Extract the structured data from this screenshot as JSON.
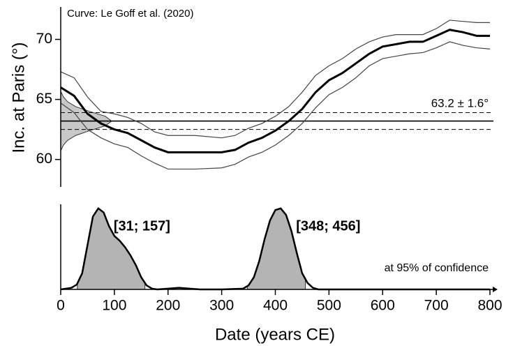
{
  "chart_data": [
    {
      "type": "line",
      "annotation": "Curve: Le Goff et al. (2020)",
      "ylabel": "Inc. at Paris (°)",
      "x": [
        0,
        25,
        50,
        75,
        100,
        125,
        150,
        175,
        200,
        250,
        300,
        325,
        350,
        375,
        400,
        425,
        450,
        475,
        500,
        525,
        550,
        575,
        600,
        625,
        650,
        675,
        700,
        725,
        750,
        775,
        800
      ],
      "series": [
        {
          "color": "#000000",
          "values": [
            66.0,
            65.3,
            63.8,
            63.0,
            62.5,
            62.2,
            61.6,
            61.0,
            60.6,
            60.6,
            60.6,
            60.8,
            61.4,
            61.8,
            62.4,
            63.2,
            64.2,
            65.6,
            66.6,
            67.2,
            68.0,
            68.8,
            69.4,
            69.6,
            69.8,
            69.8,
            70.3,
            70.8,
            70.6,
            70.3,
            70.3
          ]
        },
        {
          "color": "#444444",
          "values": [
            67.3,
            66.8,
            65.2,
            64.0,
            63.8,
            63.5,
            63.0,
            62.3,
            62.0,
            62.0,
            61.8,
            62.0,
            62.6,
            63.0,
            63.6,
            64.4,
            65.6,
            67.0,
            67.8,
            68.4,
            69.2,
            69.8,
            70.2,
            70.4,
            70.4,
            70.4,
            70.9,
            71.6,
            71.5,
            71.4,
            71.4
          ]
        },
        {
          "color": "#444444",
          "values": [
            64.7,
            63.9,
            62.5,
            61.8,
            61.3,
            61.0,
            60.3,
            59.7,
            59.2,
            59.2,
            59.3,
            59.6,
            60.2,
            60.6,
            61.2,
            62.0,
            63.0,
            64.3,
            65.4,
            66.0,
            66.8,
            67.8,
            68.4,
            68.6,
            68.8,
            68.9,
            69.3,
            69.8,
            69.5,
            69.3,
            69.2
          ]
        }
      ],
      "reference": {
        "label": "63.2 ± 1.6°",
        "value": 63.2,
        "lower": 62.5,
        "upper": 63.9
      },
      "density": {
        "color": "#c8c8c8",
        "y": [
          60.8,
          61.2,
          61.6,
          62.0,
          62.4,
          62.8,
          63.2,
          63.6,
          64.0,
          64.4,
          64.8,
          65.2,
          65.6
        ],
        "values": [
          1,
          5,
          13,
          28,
          54,
          83,
          95,
          83,
          54,
          28,
          13,
          5,
          1
        ]
      },
      "xlim": [
        0,
        800
      ],
      "ylim": [
        57.6,
        72.7
      ],
      "yticks": [
        60,
        65,
        70
      ]
    },
    {
      "type": "area",
      "color": "#b4b4b4",
      "xlabel": "Date (years CE)",
      "annotation": "at 95% of confidence",
      "x": [
        0,
        20,
        30,
        40,
        50,
        60,
        70,
        80,
        90,
        100,
        110,
        120,
        130,
        140,
        150,
        160,
        170,
        180,
        200,
        220,
        240,
        260,
        300,
        340,
        350,
        360,
        370,
        380,
        390,
        400,
        410,
        420,
        430,
        440,
        450,
        460,
        470,
        480,
        500,
        800
      ],
      "values": [
        0,
        0.02,
        0.06,
        0.2,
        0.55,
        0.9,
        1.0,
        0.95,
        0.78,
        0.66,
        0.6,
        0.52,
        0.42,
        0.3,
        0.15,
        0.05,
        0.01,
        0,
        0.01,
        0.02,
        0.01,
        0,
        0,
        0.01,
        0.05,
        0.15,
        0.35,
        0.62,
        0.85,
        0.98,
        1.0,
        0.92,
        0.72,
        0.45,
        0.2,
        0.08,
        0.02,
        0,
        0,
        0
      ],
      "intervals": [
        {
          "label": "[31; 157]",
          "start": 31,
          "end": 157
        },
        {
          "label": "[348; 456]",
          "start": 348,
          "end": 456
        }
      ],
      "xlim": [
        0,
        800
      ],
      "ylim": [
        0,
        1.05
      ],
      "xticks": [
        0,
        100,
        200,
        300,
        400,
        500,
        600,
        700,
        800
      ]
    }
  ]
}
